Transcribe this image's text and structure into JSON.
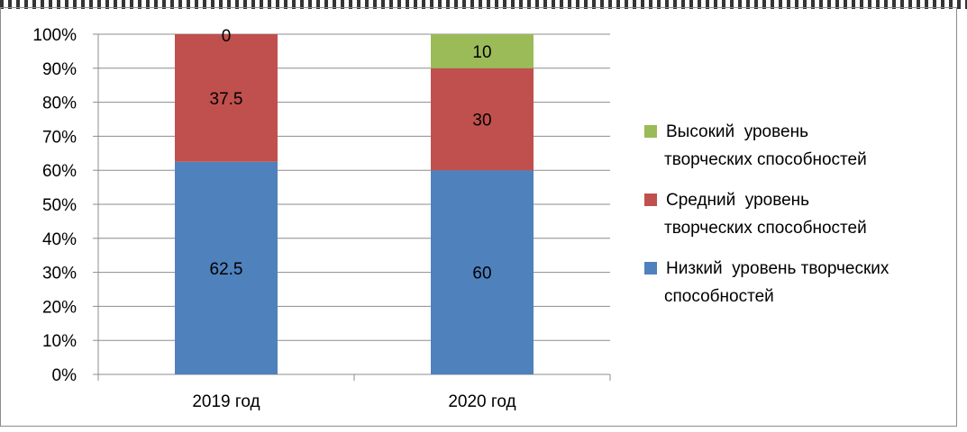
{
  "chart_data": {
    "type": "bar",
    "stacked": true,
    "percent": true,
    "title": "",
    "xlabel": "",
    "ylabel": "",
    "ylim": [
      0,
      100
    ],
    "y_ticks": [
      "0%",
      "10%",
      "20%",
      "30%",
      "40%",
      "50%",
      "60%",
      "70%",
      "80%",
      "90%",
      "100%"
    ],
    "grid": true,
    "legend_position": "right",
    "categories": [
      "2019 год",
      "2020 год"
    ],
    "series": [
      {
        "name_lines": [
          "Низкий  уровень творческих",
          "способностей"
        ],
        "color": "#4f81bd",
        "values": [
          62.5,
          60
        ]
      },
      {
        "name_lines": [
          "Средний  уровень",
          "творческих способностей"
        ],
        "color": "#c0504d",
        "values": [
          37.5,
          30
        ]
      },
      {
        "name_lines": [
          "Высокий  уровень",
          "творческих способностей"
        ],
        "color": "#9bbb59",
        "values": [
          0,
          10
        ]
      }
    ],
    "data_labels": [
      [
        "62.5",
        "60"
      ],
      [
        "37.5",
        "30"
      ],
      [
        "0",
        "10"
      ]
    ]
  }
}
